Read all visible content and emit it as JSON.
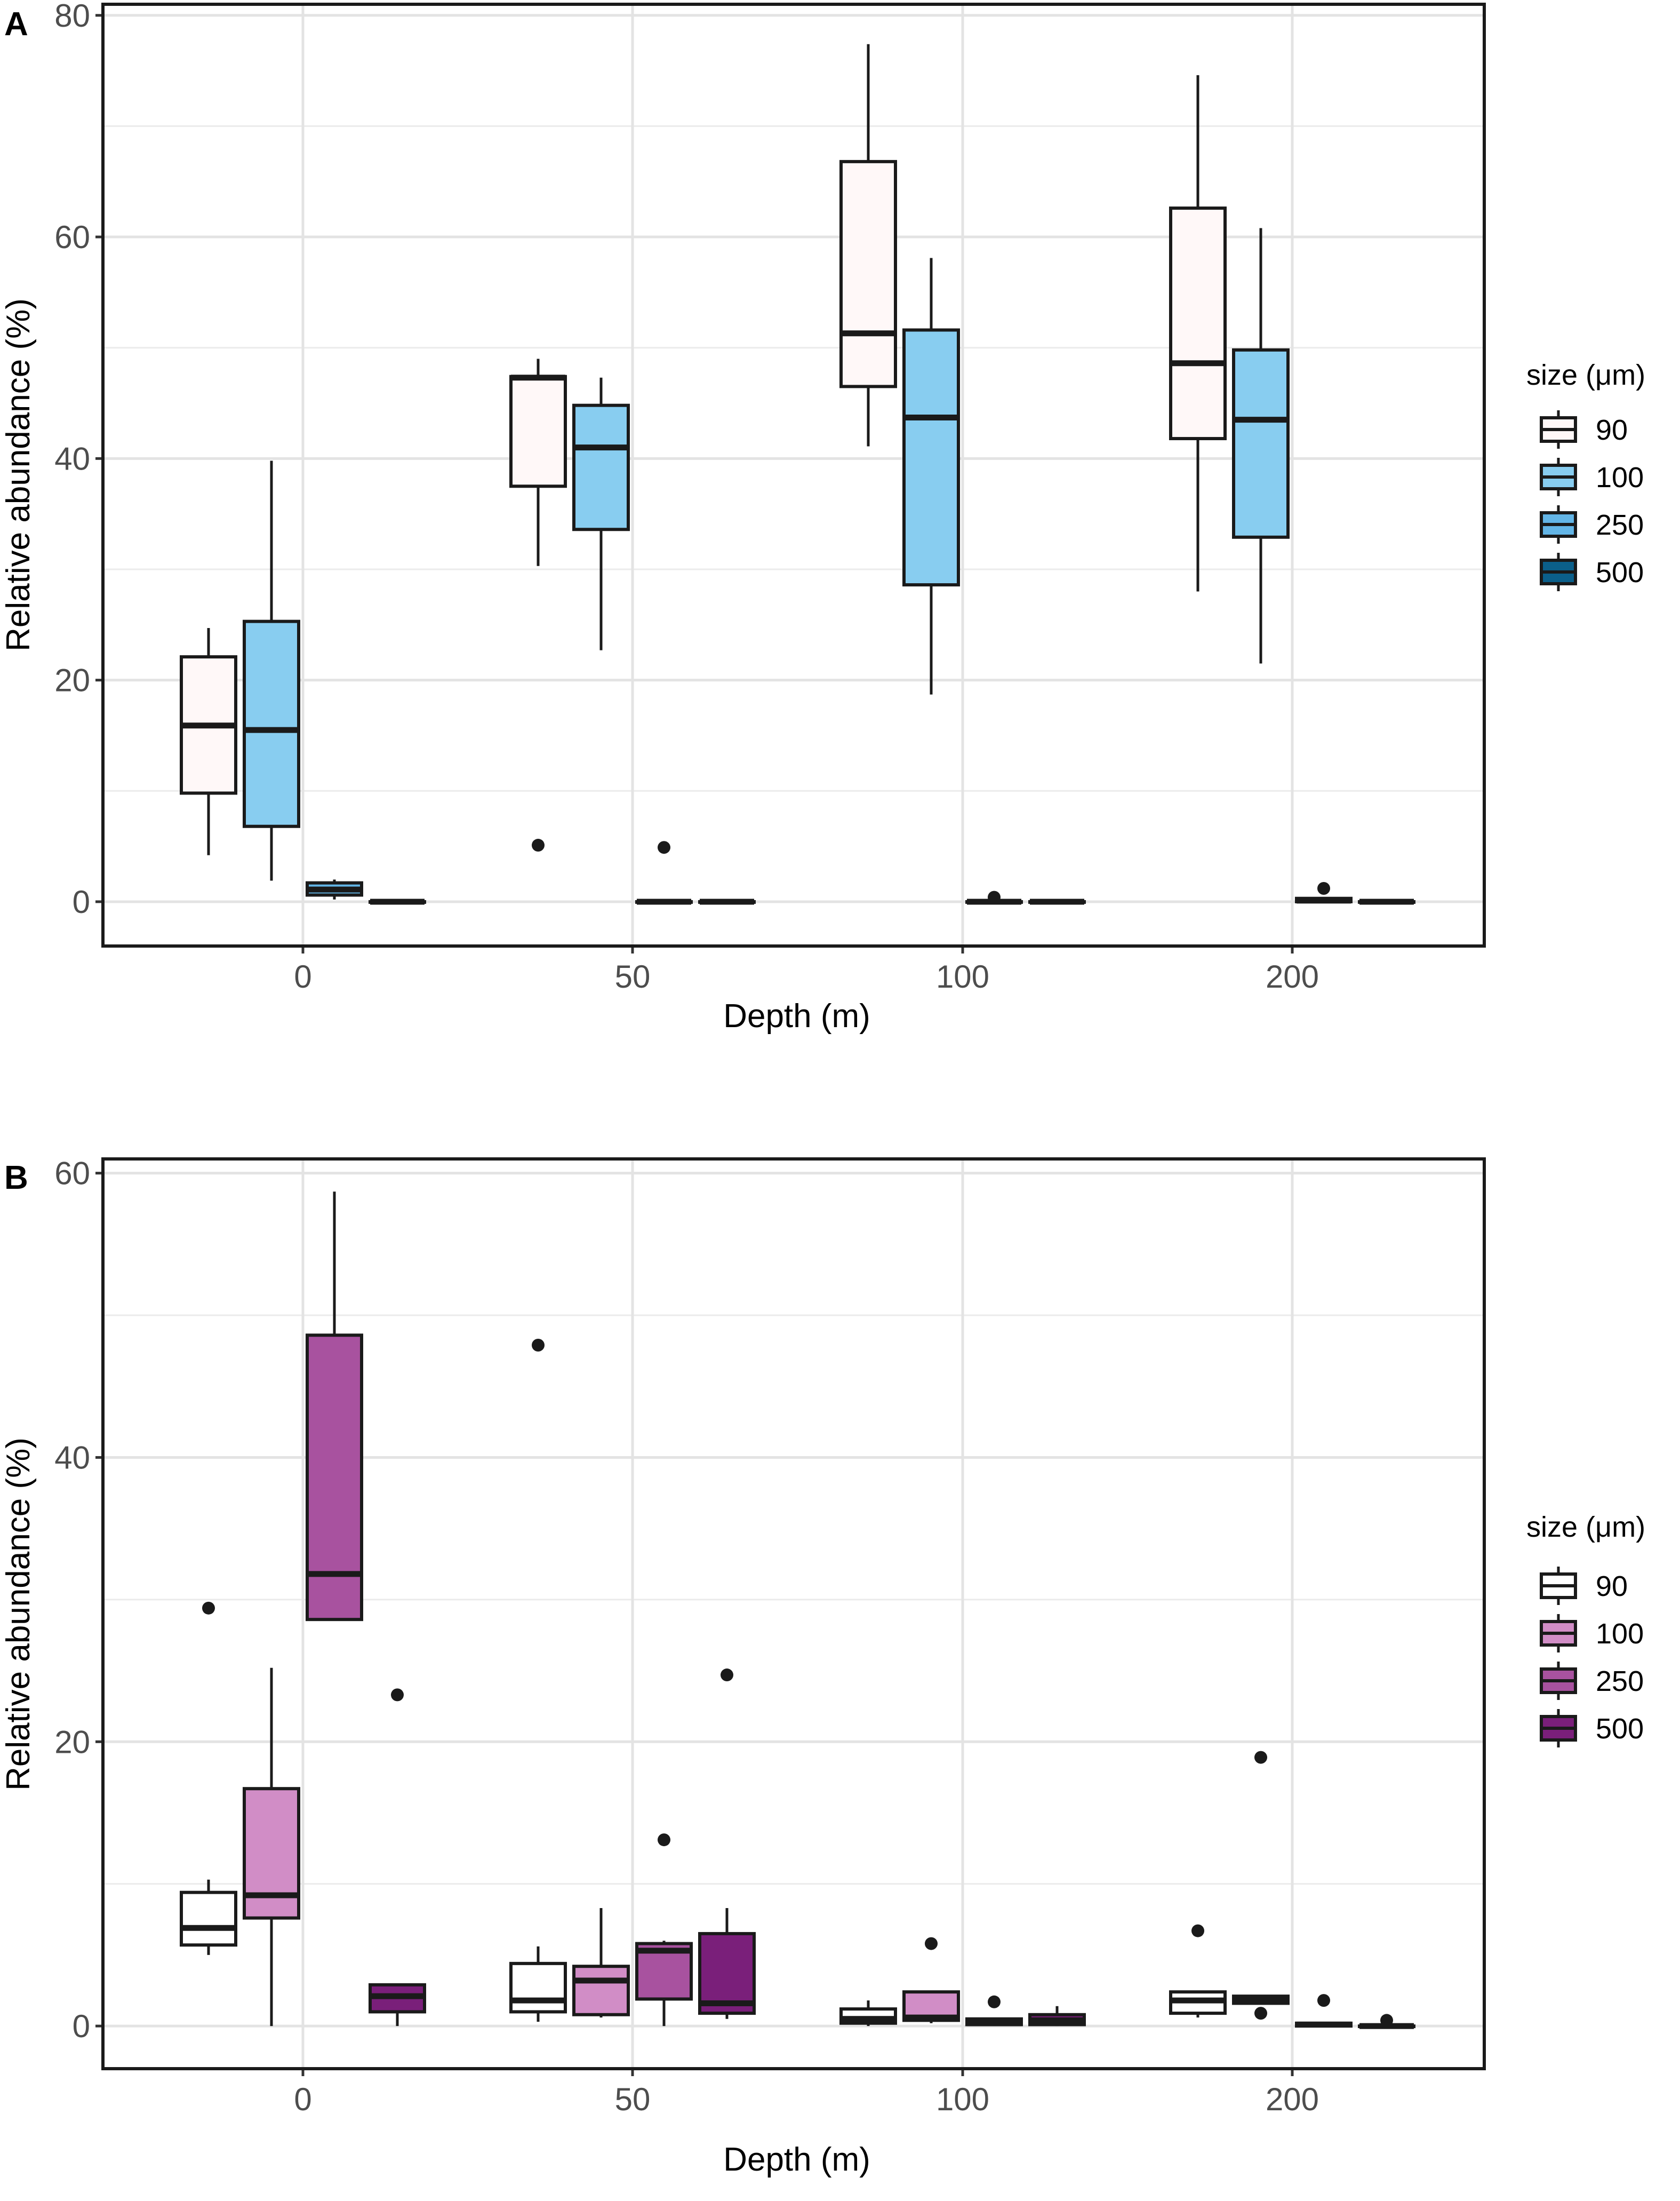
{
  "chart_data": [
    {
      "panel": "A",
      "type": "box",
      "xlabel": "Depth (m)",
      "ylabel": "Relative abundance (%)",
      "ylim": [
        -4,
        81
      ],
      "yticks": [
        0,
        20,
        40,
        60,
        80
      ],
      "categories": [
        "0",
        "50",
        "100",
        "200"
      ],
      "legend": {
        "title": "size (μm)",
        "entries": [
          "90",
          "100",
          "250",
          "500"
        ],
        "colors": [
          "#fff8f8",
          "#88cdf0",
          "#63b5e6",
          "#0b5f8a"
        ]
      },
      "groups": [
        {
          "category": "0",
          "boxes": [
            {
              "size": "90",
              "min": 4.2,
              "q1": 9.8,
              "median": 15.9,
              "q3": 22.1,
              "max": 24.7,
              "outliers": []
            },
            {
              "size": "100",
              "min": 1.9,
              "q1": 6.8,
              "median": 15.5,
              "q3": 25.3,
              "max": 39.8,
              "outliers": []
            },
            {
              "size": "250",
              "min": 0.2,
              "q1": 0.6,
              "median": 1.1,
              "q3": 1.7,
              "max": 2.0,
              "outliers": []
            },
            {
              "size": "500",
              "min": 0,
              "q1": 0,
              "median": 0,
              "q3": 0,
              "max": 0,
              "outliers": []
            }
          ]
        },
        {
          "category": "50",
          "boxes": [
            {
              "size": "90",
              "min": 30.3,
              "q1": 37.5,
              "median": 47.3,
              "q3": 47.4,
              "max": 49.0,
              "outliers": [
                5.1
              ]
            },
            {
              "size": "100",
              "min": 22.7,
              "q1": 33.6,
              "median": 41.0,
              "q3": 44.8,
              "max": 47.3,
              "outliers": []
            },
            {
              "size": "250",
              "min": 0,
              "q1": 0,
              "median": 0,
              "q3": 0,
              "max": 0,
              "outliers": [
                4.9
              ]
            },
            {
              "size": "500",
              "min": 0,
              "q1": 0,
              "median": 0,
              "q3": 0,
              "max": 0,
              "outliers": []
            }
          ]
        },
        {
          "category": "100",
          "boxes": [
            {
              "size": "90",
              "min": 41.1,
              "q1": 46.5,
              "median": 51.3,
              "q3": 66.8,
              "max": 77.4,
              "outliers": []
            },
            {
              "size": "100",
              "min": 18.7,
              "q1": 28.6,
              "median": 43.7,
              "q3": 51.6,
              "max": 58.1,
              "outliers": []
            },
            {
              "size": "250",
              "min": 0,
              "q1": 0,
              "median": 0,
              "q3": 0,
              "max": 0,
              "outliers": [
                0.4
              ]
            },
            {
              "size": "500",
              "min": 0,
              "q1": 0,
              "median": 0,
              "q3": 0,
              "max": 0,
              "outliers": []
            }
          ]
        },
        {
          "category": "200",
          "boxes": [
            {
              "size": "90",
              "min": 28.0,
              "q1": 41.8,
              "median": 48.6,
              "q3": 62.6,
              "max": 74.6,
              "outliers": []
            },
            {
              "size": "100",
              "min": 21.5,
              "q1": 32.9,
              "median": 43.5,
              "q3": 49.8,
              "max": 60.8,
              "outliers": []
            },
            {
              "size": "250",
              "min": 0,
              "q1": 0,
              "median": 0.1,
              "q3": 0.3,
              "max": 0.3,
              "outliers": [
                1.2
              ]
            },
            {
              "size": "500",
              "min": 0,
              "q1": 0,
              "median": 0,
              "q3": 0,
              "max": 0,
              "outliers": []
            }
          ]
        }
      ]
    },
    {
      "panel": "B",
      "type": "box",
      "xlabel": "Depth (m)",
      "ylabel": "Relative abundance (%)",
      "ylim": [
        -3,
        61
      ],
      "yticks": [
        0,
        20,
        40,
        60
      ],
      "categories": [
        "0",
        "50",
        "100",
        "200"
      ],
      "legend": {
        "title": "size (μm)",
        "entries": [
          "90",
          "100",
          "250",
          "500"
        ],
        "colors": [
          "#ffffff",
          "#d18dc6",
          "#a8529f",
          "#7a1f7a"
        ]
      },
      "groups": [
        {
          "category": "0",
          "boxes": [
            {
              "size": "90",
              "min": 5.0,
              "q1": 5.7,
              "median": 6.9,
              "q3": 9.4,
              "max": 10.3,
              "outliers": [
                29.4
              ]
            },
            {
              "size": "100",
              "min": 0,
              "q1": 7.6,
              "median": 9.2,
              "q3": 16.7,
              "max": 25.2,
              "outliers": []
            },
            {
              "size": "250",
              "min": 28.6,
              "q1": 28.6,
              "median": 31.8,
              "q3": 48.6,
              "max": 58.7,
              "outliers": []
            },
            {
              "size": "500",
              "min": 0,
              "q1": 1.0,
              "median": 2.1,
              "q3": 2.9,
              "max": 2.9,
              "outliers": [
                23.3
              ]
            }
          ]
        },
        {
          "category": "50",
          "boxes": [
            {
              "size": "90",
              "min": 0.3,
              "q1": 1.0,
              "median": 1.8,
              "q3": 4.4,
              "max": 5.6,
              "outliers": [
                47.9
              ]
            },
            {
              "size": "100",
              "min": 0.6,
              "q1": 0.8,
              "median": 3.2,
              "q3": 4.2,
              "max": 8.3,
              "outliers": []
            },
            {
              "size": "250",
              "min": 0,
              "q1": 1.9,
              "median": 5.3,
              "q3": 5.8,
              "max": 6.0,
              "outliers": [
                13.1
              ]
            },
            {
              "size": "500",
              "min": 0.5,
              "q1": 0.9,
              "median": 1.6,
              "q3": 6.5,
              "max": 8.3,
              "outliers": [
                24.7
              ]
            }
          ]
        },
        {
          "category": "100",
          "boxes": [
            {
              "size": "90",
              "min": 0,
              "q1": 0.2,
              "median": 0.5,
              "q3": 1.2,
              "max": 1.8,
              "outliers": []
            },
            {
              "size": "100",
              "min": 0.2,
              "q1": 0.4,
              "median": 0.6,
              "q3": 2.4,
              "max": 2.4,
              "outliers": [
                5.8
              ]
            },
            {
              "size": "250",
              "min": 0,
              "q1": 0.1,
              "median": 0.2,
              "q3": 0.5,
              "max": 0.5,
              "outliers": [
                1.7
              ]
            },
            {
              "size": "500",
              "min": 0,
              "q1": 0.1,
              "median": 0.4,
              "q3": 0.8,
              "max": 1.4,
              "outliers": []
            }
          ]
        },
        {
          "category": "200",
          "boxes": [
            {
              "size": "90",
              "min": 0.6,
              "q1": 0.9,
              "median": 1.8,
              "q3": 2.4,
              "max": 2.4,
              "outliers": [
                6.7
              ]
            },
            {
              "size": "100",
              "min": 1.6,
              "q1": 1.6,
              "median": 1.9,
              "q3": 2.1,
              "max": 2.1,
              "outliers": [
                18.9,
                0.9
              ]
            },
            {
              "size": "250",
              "min": 0,
              "q1": 0,
              "median": 0.1,
              "q3": 0.2,
              "max": 0.2,
              "outliers": [
                1.8
              ]
            },
            {
              "size": "500",
              "min": 0,
              "q1": 0,
              "median": 0,
              "q3": 0,
              "max": 0,
              "outliers": [
                0.4
              ]
            }
          ]
        }
      ]
    }
  ]
}
